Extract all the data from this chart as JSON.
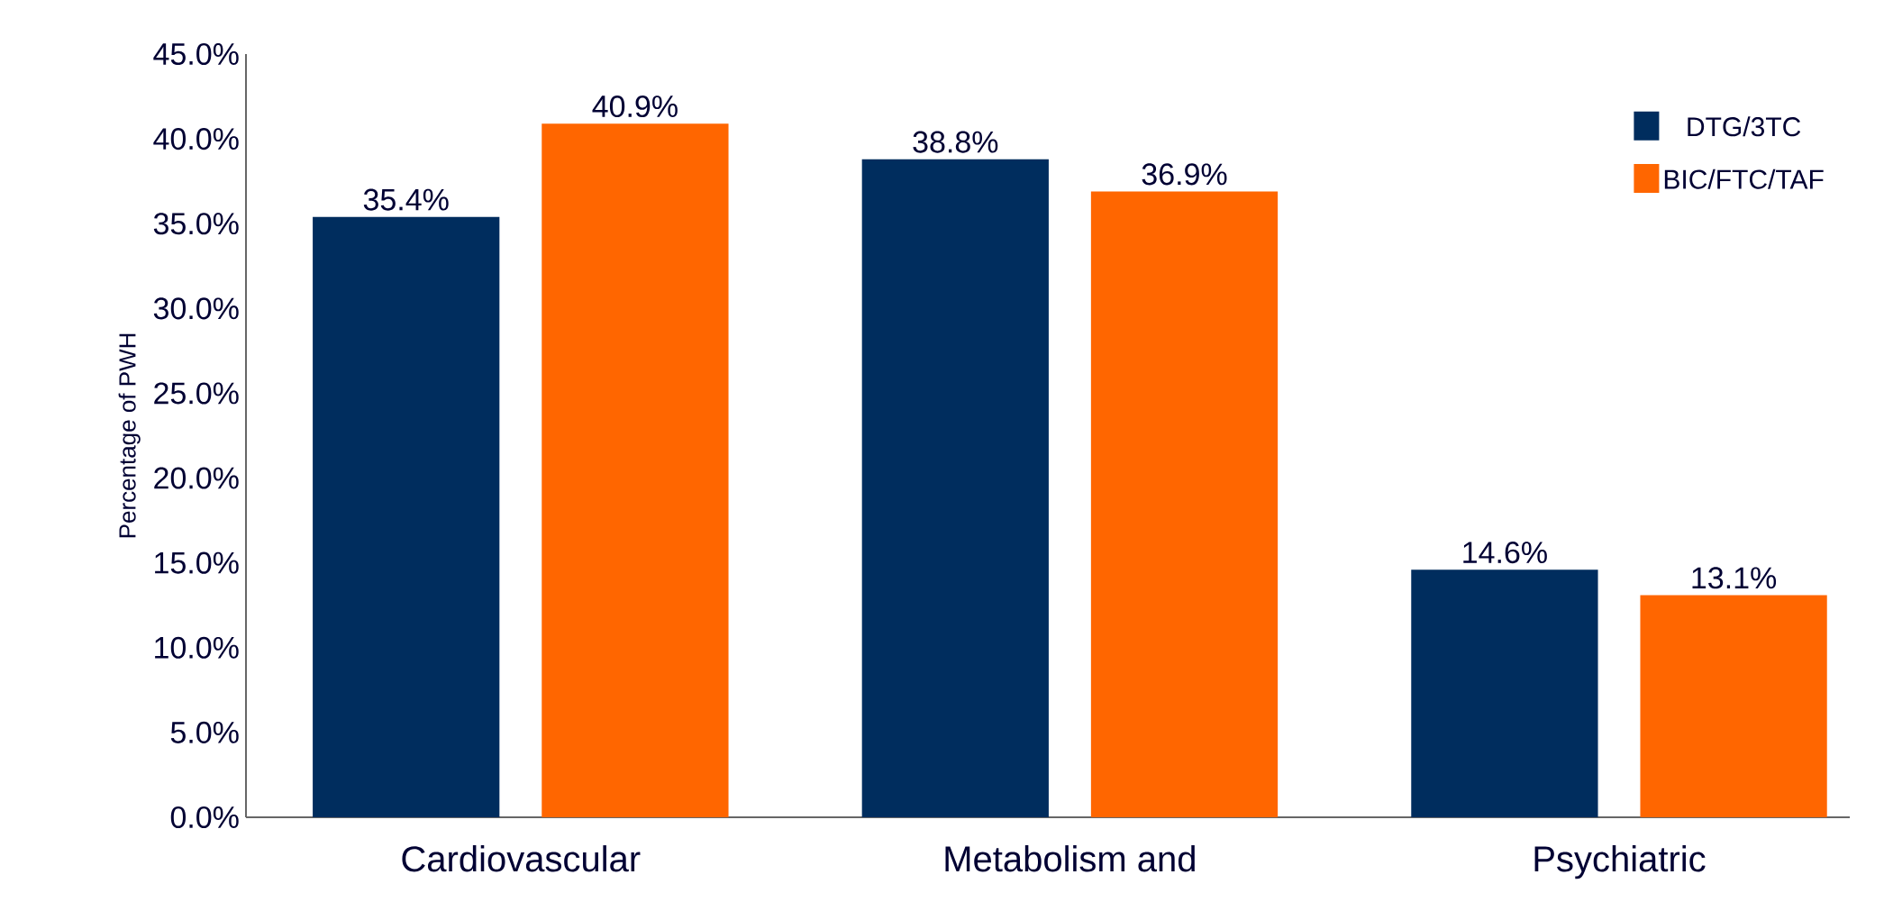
{
  "chart_data": {
    "type": "bar",
    "ylabel": "Percentage of PWH",
    "categories": [
      "Cardiovascular",
      "Metabolism and",
      "Psychiatric"
    ],
    "series": [
      {
        "name": "DTG/3TC",
        "color": "#002d5e",
        "values": [
          35.4,
          38.8,
          14.6
        ],
        "value_labels": [
          "35.4%",
          "38.8%",
          "14.6%"
        ]
      },
      {
        "name": "BIC/FTC/TAF",
        "color": "#ff6600",
        "values": [
          40.9,
          36.9,
          13.1
        ],
        "value_labels": [
          "40.9%",
          "36.9%",
          "13.1%"
        ]
      }
    ],
    "ylim": [
      0,
      45
    ],
    "yticks": [
      {
        "value": 0,
        "label": "0.0%"
      },
      {
        "value": 5,
        "label": "5.0%"
      },
      {
        "value": 10,
        "label": "10.0%"
      },
      {
        "value": 15,
        "label": "15.0%"
      },
      {
        "value": 20,
        "label": "20.0%"
      },
      {
        "value": 25,
        "label": "25.0%"
      },
      {
        "value": 30,
        "label": "30.0%"
      },
      {
        "value": 35,
        "label": "35.0%"
      },
      {
        "value": 40,
        "label": "40.0%"
      },
      {
        "value": 45,
        "label": "45.0%"
      }
    ],
    "grid": false,
    "legend": "top right"
  }
}
